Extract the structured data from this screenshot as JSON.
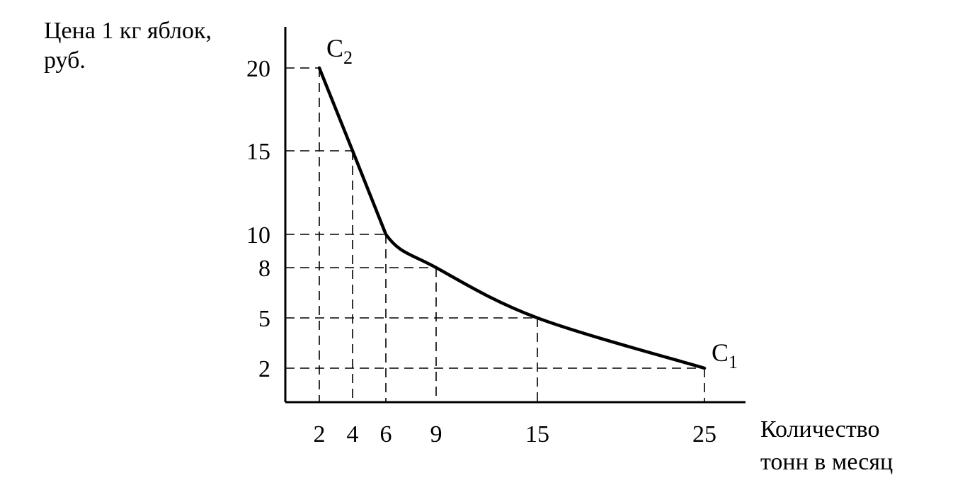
{
  "chart_data": {
    "type": "line",
    "ylabel_line1": "Цена 1 кг яблок,",
    "ylabel_line2": "руб.",
    "xlabel_line1": "Количество",
    "xlabel_line2": "тонн в месяц",
    "x_ticks": [
      "2",
      "4",
      "6",
      "9",
      "15",
      "25"
    ],
    "y_ticks": [
      "2",
      "5",
      "8",
      "10",
      "15",
      "20"
    ],
    "x_values": [
      2,
      4,
      6,
      9,
      15,
      25
    ],
    "y_values": [
      2,
      5,
      8,
      10,
      15,
      20
    ],
    "series": [
      {
        "points": [
          [
            2,
            20
          ],
          [
            4,
            15
          ],
          [
            6,
            10
          ],
          [
            9,
            8
          ],
          [
            15,
            5
          ],
          [
            25,
            2
          ]
        ]
      }
    ],
    "guides": [
      [
        2,
        20
      ],
      [
        4,
        15
      ],
      [
        6,
        10
      ],
      [
        9,
        8
      ],
      [
        15,
        5
      ],
      [
        25,
        2
      ]
    ],
    "annotations": [
      {
        "letter": "C",
        "sub": "2",
        "x": 2,
        "y": 20
      },
      {
        "letter": "C",
        "sub": "1",
        "x": 25,
        "y": 2
      }
    ],
    "grid": false
  }
}
